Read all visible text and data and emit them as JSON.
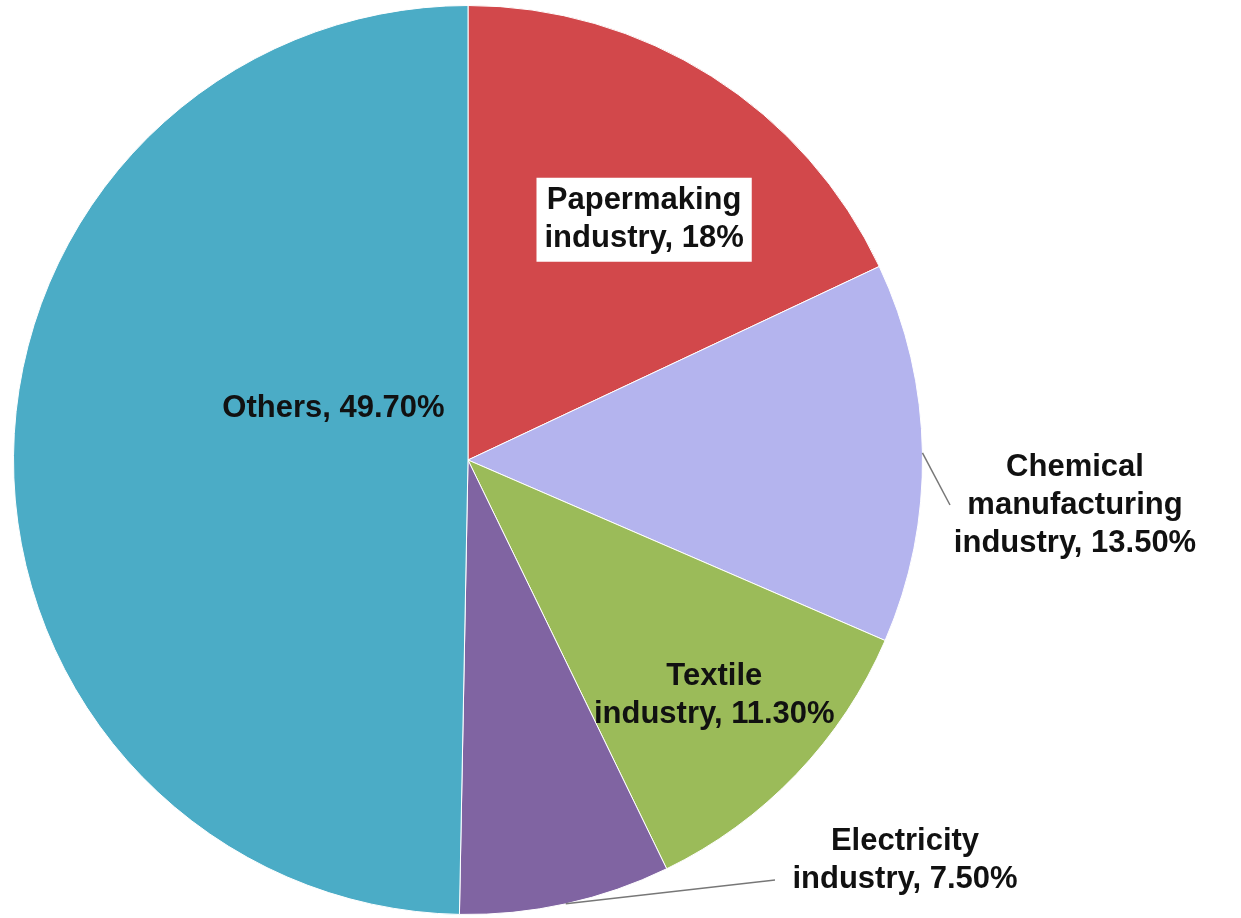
{
  "chart_data": {
    "type": "pie",
    "categories": [
      "Papermaking industry",
      "Chemical manufacturing industry",
      "Textile industry",
      "Electricity industry",
      "Others"
    ],
    "values": [
      18,
      13.5,
      11.3,
      7.5,
      49.7
    ],
    "value_labels": [
      "18%",
      "13.50%",
      "11.30%",
      "7.50%",
      "49.70%"
    ],
    "colors": [
      "#d2484b",
      "#b4b4ee",
      "#9bbb59",
      "#8064a2",
      "#4bacc6"
    ]
  }
}
